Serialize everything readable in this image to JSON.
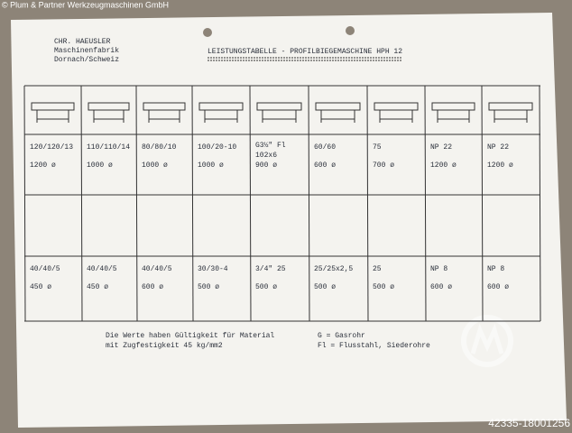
{
  "watermark": "© Plum & Partner Werkzeugmaschinen GmbH",
  "reference": "42335-18001256",
  "header": {
    "company": [
      "CHR. HAEUSLER",
      "Maschinenfabrik",
      "Dornach/Schweiz"
    ],
    "title": "LEISTUNGSTABELLE - PROFILBIEGEMASCHINE HPH 12"
  },
  "table": {
    "rows": [
      [
        [
          "120/120/13",
          "1200 ø"
        ],
        [
          "110/110/14",
          "1000 ø"
        ],
        [
          "80/80/10",
          "1000 ø"
        ],
        [
          "100/20-10",
          "1000 ø"
        ],
        [
          "G3½\" Fl",
          "102x6",
          "900 ø"
        ],
        [
          "60/60",
          "600 ø"
        ],
        [
          "75",
          "700 ø"
        ],
        [
          "NP 22",
          "1200 ø"
        ],
        [
          "NP 22",
          "1200 ø"
        ]
      ],
      [
        [
          "40/40/5",
          "450 ø"
        ],
        [
          "40/40/5",
          "450 ø"
        ],
        [
          "40/40/5",
          "600 ø"
        ],
        [
          "30/30-4",
          "500 ø"
        ],
        [
          "3/4\" 25",
          "500 ø"
        ],
        [
          "25/25x2,5",
          "500 ø"
        ],
        [
          "25",
          "500 ø"
        ],
        [
          "NP 8",
          "600 ø"
        ],
        [
          "NP 8",
          "600 ø"
        ]
      ]
    ]
  },
  "notes": {
    "left": [
      "Die Werte haben Gültigkeit für Material",
      "mit Zugfestigkeit 45 kg/mm2"
    ],
    "right": [
      "G = Gasrohr",
      "Fl = Flusstahl, Siederohre"
    ]
  }
}
